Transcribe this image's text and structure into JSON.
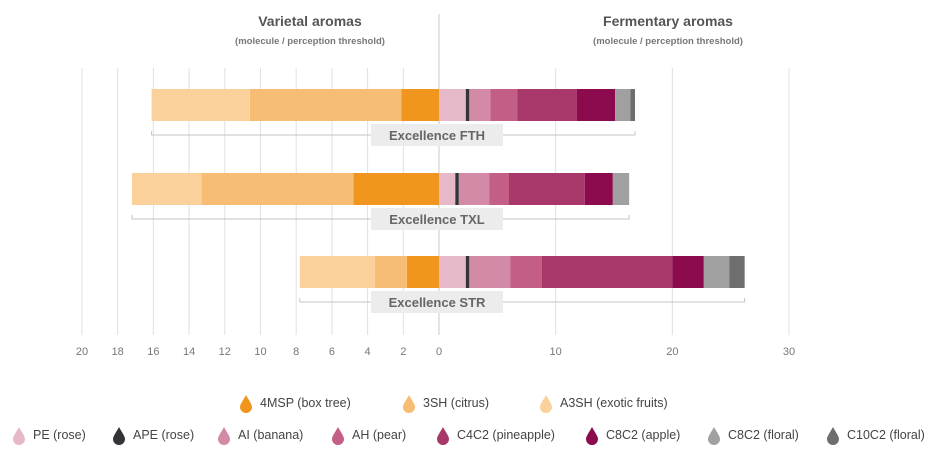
{
  "chart_data": {
    "type": "bar",
    "orientation": "horizontal-diverging",
    "left_title": "Varietal aromas",
    "left_subtitle": "(molecule / perception threshold)",
    "right_title": "Fermentary aromas",
    "right_subtitle": "(molecule / perception threshold)",
    "left_ticks": [
      "20",
      "18",
      "16",
      "14",
      "12",
      "10",
      "8",
      "6",
      "4",
      "2",
      "0"
    ],
    "right_ticks": [
      "10",
      "20",
      "30"
    ],
    "left_xlim": [
      0,
      20
    ],
    "right_xlim": [
      0,
      30
    ],
    "grid": true,
    "left_series": [
      {
        "name": "4MSP (box tree)",
        "color": "#f0961e"
      },
      {
        "name": "3SH (citrus)",
        "color": "#f7bd74"
      },
      {
        "name": "A3SH (exotic fruits)",
        "color": "#fad19a"
      }
    ],
    "right_series": [
      {
        "name": "PE (rose)",
        "color": "#e6b9c9"
      },
      {
        "name": "APE (rose)",
        "color": "#333338"
      },
      {
        "name": "AI (banana)",
        "color": "#d38aa6"
      },
      {
        "name": "AH (pear)",
        "color": "#c35e87"
      },
      {
        "name": "C4C2 (pineapple)",
        "color": "#a8386a"
      },
      {
        "name": "C8C2 (apple)",
        "color": "#8c0b4e"
      },
      {
        "name": "C8C2 (floral)",
        "color": "#a0a0a0"
      },
      {
        "name": "C10C2 (floral)",
        "color": "#6e6e6e"
      }
    ],
    "groups": [
      {
        "label": "Excellence FTH",
        "left_values": [
          2.1,
          8.5,
          5.5
        ],
        "right_values": [
          2.3,
          0.3,
          1.8,
          2.3,
          5.1,
          3.3,
          1.3,
          0.4
        ]
      },
      {
        "label": "Excellence TXL",
        "left_values": [
          4.8,
          8.5,
          3.9
        ],
        "right_values": [
          1.4,
          0.3,
          2.6,
          1.7,
          6.5,
          2.4,
          1.4,
          0.0
        ]
      },
      {
        "label": "Excellence STR",
        "left_values": [
          1.8,
          1.8,
          4.2
        ],
        "right_values": [
          2.3,
          0.3,
          3.5,
          2.7,
          11.2,
          2.7,
          2.2,
          1.3
        ]
      }
    ],
    "legend_rows": [
      [
        "4MSP (box tree)",
        "3SH (citrus)",
        "A3SH (exotic fruits)"
      ],
      [
        "PE (rose)",
        "APE (rose)",
        "AI (banana)",
        "AH (pear)",
        "C4C2 (pineapple)",
        "C8C2 (apple)",
        "C8C2 (floral)",
        "C10C2 (floral)"
      ]
    ],
    "legend_placement": "bottom"
  }
}
